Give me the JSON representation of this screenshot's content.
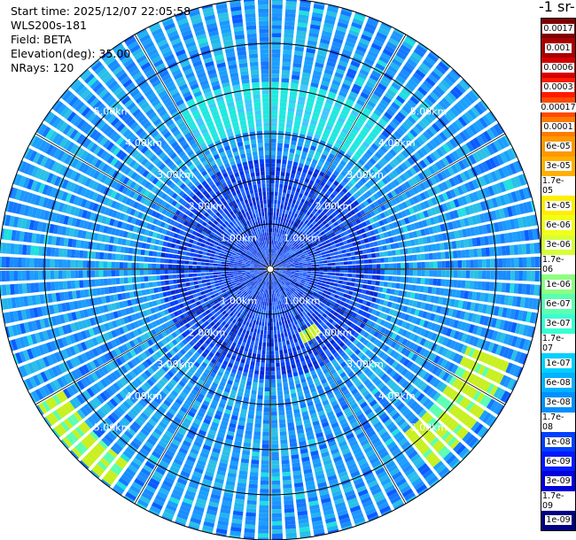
{
  "info": {
    "start_time": "Start time: 2025/12/07 22:05:58",
    "instrument": "WLS200s-181",
    "field": "Field: BETA",
    "elevation": "Elevation(deg): 35.00",
    "nrays": "NRays: 120"
  },
  "colorbar": {
    "unit_title": "-1 sr-",
    "labels": [
      "0.0017",
      "0.001",
      "0.0006",
      "0.0003",
      "0.00017",
      "0.0001",
      "6e-05",
      "3e-05",
      "1.7e-05",
      "1e-05",
      "6e-06",
      "3e-06",
      "1.7e-06",
      "1e-06",
      "6e-07",
      "3e-07",
      "1.7e-07",
      "1e-07",
      "6e-08",
      "3e-08",
      "1.7e-08",
      "1e-08",
      "6e-09",
      "3e-09",
      "1.7e-09",
      "1e-09"
    ],
    "colors": [
      "#7f0000",
      "#a80000",
      "#d40000",
      "#ff1a00",
      "#ff4a00",
      "#ff7a00",
      "#ff9800",
      "#ffb000",
      "#ffcc00",
      "#ffee00",
      "#f2ff1a",
      "#d6ff38",
      "#b4ff5a",
      "#8cff80",
      "#5cffb0",
      "#38ffd2",
      "#18f0e6",
      "#00d0ff",
      "#00b2ff",
      "#0090ff",
      "#0066ff",
      "#0040ff",
      "#001aff",
      "#0000d8",
      "#0000a8",
      "#000080"
    ]
  },
  "range_rings": {
    "labels": [
      "1.00km",
      "2.00km",
      "3.00km",
      "4.00km",
      "5.00km"
    ]
  },
  "chart_data": {
    "type": "heatmap",
    "projection": "polar PPI",
    "field": "BETA",
    "nrays": 120,
    "elevation_deg": 35.0,
    "range_km": [
      0,
      6
    ],
    "rings_km": [
      1,
      2,
      3,
      4,
      5
    ],
    "colormap_accent": {
      "background": "#1aa0ff",
      "near_range": "#0a32e6",
      "enhanced": "#20e8e0",
      "strong": "#c8f020"
    },
    "features": [
      {
        "label": "enhanced arc north",
        "azimuth_deg": [
          330,
          40
        ],
        "range_km": [
          3.0,
          4.1
        ],
        "value": "1.7e-07"
      },
      {
        "label": "strong arc south-west",
        "azimuth_deg": [
          215,
          240
        ],
        "range_km": [
          5.3,
          5.9
        ],
        "value": "1e-06"
      },
      {
        "label": "strong arc east",
        "azimuth_deg": [
          110,
          140
        ],
        "range_km": [
          4.6,
          5.6
        ],
        "value": "1e-06"
      },
      {
        "label": "strong patch south-east",
        "azimuth_deg": [
          140,
          155
        ],
        "range_km": [
          1.5,
          1.8
        ],
        "value": "3e-06"
      }
    ]
  }
}
